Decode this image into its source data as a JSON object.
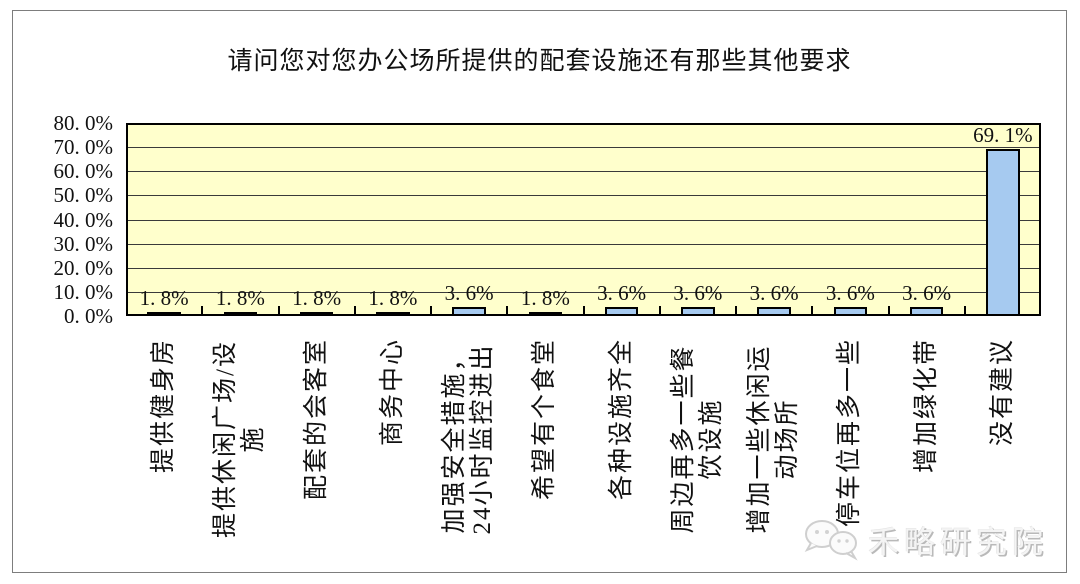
{
  "title": "请问您对您办公场所提供的配套设施还有那些其他要求",
  "watermark": {
    "brand_name": "禾略研究院",
    "icon": "wechat-icon"
  },
  "chart_data": {
    "type": "bar",
    "title": "请问您对您办公场所提供的配套设施还有那些其他要求",
    "categories": [
      "提供健身房",
      "提供休闲广场/设\n施",
      "配套的会客室",
      "商务中心",
      "加强安全措施，\n24小时监控进出",
      "希望有个食堂",
      "各种设施齐全",
      "周边再多一些餐\n饮设施",
      "增加一些休闲运\n动场所",
      "停车位再多一些",
      "增加绿化带",
      "没有建议"
    ],
    "values": [
      1.8,
      1.8,
      1.8,
      1.8,
      3.6,
      1.8,
      3.6,
      3.6,
      3.6,
      3.6,
      3.6,
      69.1
    ],
    "data_labels": [
      "1. 8%",
      "1. 8%",
      "1. 8%",
      "1. 8%",
      "3. 6%",
      "1. 8%",
      "3. 6%",
      "3. 6%",
      "3. 6%",
      "3. 6%",
      "3. 6%",
      "69. 1%"
    ],
    "xlabel": "",
    "ylabel": "",
    "ylim": [
      0,
      80
    ],
    "y_tick_labels": [
      "80. 0%",
      "70. 0%",
      "60. 0%",
      "50. 0%",
      "40. 0%",
      "30. 0%",
      "20. 0%",
      "10. 0%",
      "0. 0%"
    ],
    "grid": true,
    "legend": false,
    "colors": {
      "bar_fill": "#A6CAF0",
      "bar_border": "#000000",
      "plot_background": "#FFFFCC",
      "gridline": "#3a3a3a"
    }
  }
}
